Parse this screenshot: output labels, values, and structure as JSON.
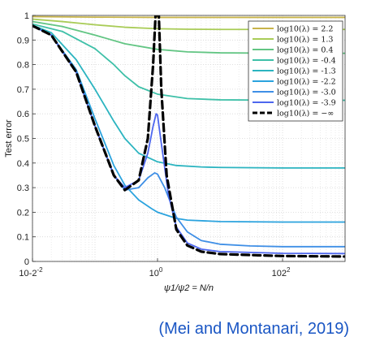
{
  "caption": "(Mei and Montanari, 2019)",
  "chart_data": {
    "type": "line",
    "title": "",
    "xlabel": "ψ1/ψ2 = N/n",
    "ylabel": "Test error",
    "xscale": "log",
    "xlim": [
      0.01,
      1000
    ],
    "ylim": [
      0,
      1
    ],
    "grid": true,
    "legend_position": "top-right",
    "x_ticks": [
      0.01,
      1,
      100
    ],
    "x_tick_labels": [
      "10-2",
      "10",
      "102"
    ],
    "y_ticks": [
      0,
      0.1,
      0.2,
      0.3,
      0.4,
      0.5,
      0.6,
      0.7,
      0.8,
      0.9,
      1
    ],
    "y_tick_labels": [
      "0",
      "0.1",
      "0.2",
      "0.3",
      "0.4",
      "0.5",
      "0.6",
      "0.7",
      "0.8",
      "0.9",
      "1"
    ],
    "x_tick_exponents": [
      "-2",
      "0",
      "2"
    ],
    "series": [
      {
        "name": "log10(λ) = 2.2",
        "color": "#c8b44a",
        "dashed": false,
        "points": [
          [
            0.01,
            0.995
          ],
          [
            0.1,
            0.993
          ],
          [
            1,
            0.992
          ],
          [
            10,
            0.992
          ],
          [
            100,
            0.992
          ],
          [
            1000,
            0.992
          ]
        ]
      },
      {
        "name": "log10(λ) = 1.3",
        "color": "#a9cc57",
        "dashed": false,
        "points": [
          [
            0.01,
            0.985
          ],
          [
            0.03,
            0.975
          ],
          [
            0.1,
            0.962
          ],
          [
            0.3,
            0.952
          ],
          [
            1,
            0.946
          ],
          [
            3,
            0.944
          ],
          [
            10,
            0.943
          ],
          [
            100,
            0.943
          ],
          [
            1000,
            0.943
          ]
        ]
      },
      {
        "name": "log10(λ) = 0.4",
        "color": "#62c583",
        "dashed": false,
        "points": [
          [
            0.01,
            0.975
          ],
          [
            0.03,
            0.955
          ],
          [
            0.1,
            0.92
          ],
          [
            0.3,
            0.885
          ],
          [
            1,
            0.862
          ],
          [
            3,
            0.852
          ],
          [
            10,
            0.848
          ],
          [
            100,
            0.846
          ],
          [
            1000,
            0.846
          ]
        ]
      },
      {
        "name": "log10(λ) = -0.4",
        "color": "#3ec0a8",
        "dashed": false,
        "points": [
          [
            0.01,
            0.965
          ],
          [
            0.03,
            0.935
          ],
          [
            0.1,
            0.865
          ],
          [
            0.2,
            0.8
          ],
          [
            0.3,
            0.755
          ],
          [
            0.5,
            0.71
          ],
          [
            1,
            0.68
          ],
          [
            3,
            0.662
          ],
          [
            10,
            0.657
          ],
          [
            100,
            0.655
          ],
          [
            1000,
            0.655
          ]
        ]
      },
      {
        "name": "log10(λ) = -1.3",
        "color": "#2bb4c0",
        "dashed": false,
        "points": [
          [
            0.01,
            0.96
          ],
          [
            0.02,
            0.93
          ],
          [
            0.05,
            0.82
          ],
          [
            0.1,
            0.7
          ],
          [
            0.2,
            0.57
          ],
          [
            0.3,
            0.5
          ],
          [
            0.5,
            0.44
          ],
          [
            1,
            0.405
          ],
          [
            2,
            0.39
          ],
          [
            5,
            0.384
          ],
          [
            10,
            0.382
          ],
          [
            100,
            0.38
          ],
          [
            1000,
            0.38
          ]
        ]
      },
      {
        "name": "log10(λ) = -2.2",
        "color": "#2ba3de",
        "dashed": false,
        "points": [
          [
            0.01,
            0.958
          ],
          [
            0.02,
            0.92
          ],
          [
            0.05,
            0.78
          ],
          [
            0.1,
            0.58
          ],
          [
            0.2,
            0.39
          ],
          [
            0.3,
            0.31
          ],
          [
            0.5,
            0.25
          ],
          [
            0.8,
            0.215
          ],
          [
            1,
            0.2
          ],
          [
            2,
            0.175
          ],
          [
            3,
            0.168
          ],
          [
            10,
            0.162
          ],
          [
            100,
            0.16
          ],
          [
            1000,
            0.16
          ]
        ]
      },
      {
        "name": "log10(λ) = -3.0",
        "color": "#3f8fe6",
        "dashed": false,
        "points": [
          [
            0.01,
            0.958
          ],
          [
            0.02,
            0.92
          ],
          [
            0.05,
            0.77
          ],
          [
            0.1,
            0.55
          ],
          [
            0.2,
            0.35
          ],
          [
            0.3,
            0.29
          ],
          [
            0.5,
            0.3
          ],
          [
            0.7,
            0.34
          ],
          [
            0.9,
            0.36
          ],
          [
            1,
            0.355
          ],
          [
            1.3,
            0.3
          ],
          [
            2,
            0.18
          ],
          [
            3,
            0.12
          ],
          [
            5,
            0.085
          ],
          [
            10,
            0.07
          ],
          [
            30,
            0.063
          ],
          [
            100,
            0.06
          ],
          [
            1000,
            0.06
          ]
        ]
      },
      {
        "name": "log10(λ) = -3.9",
        "color": "#4d66ee",
        "dashed": false,
        "points": [
          [
            0.01,
            0.958
          ],
          [
            0.02,
            0.92
          ],
          [
            0.05,
            0.77
          ],
          [
            0.1,
            0.55
          ],
          [
            0.2,
            0.35
          ],
          [
            0.3,
            0.3
          ],
          [
            0.5,
            0.33
          ],
          [
            0.7,
            0.44
          ],
          [
            0.85,
            0.55
          ],
          [
            0.95,
            0.6
          ],
          [
            1,
            0.595
          ],
          [
            1.15,
            0.48
          ],
          [
            1.5,
            0.27
          ],
          [
            2,
            0.14
          ],
          [
            3,
            0.075
          ],
          [
            5,
            0.05
          ],
          [
            10,
            0.04
          ],
          [
            100,
            0.033
          ],
          [
            1000,
            0.032
          ]
        ]
      },
      {
        "name": "log10(λ) = −∞",
        "color": "#000000",
        "dashed": true,
        "points": [
          [
            0.01,
            0.958
          ],
          [
            0.02,
            0.92
          ],
          [
            0.05,
            0.77
          ],
          [
            0.1,
            0.55
          ],
          [
            0.2,
            0.35
          ],
          [
            0.3,
            0.29
          ],
          [
            0.5,
            0.33
          ],
          [
            0.7,
            0.5
          ],
          [
            0.85,
            0.8
          ],
          [
            0.93,
            1.0
          ],
          [
            1.05,
            1.0
          ],
          [
            1.15,
            0.7
          ],
          [
            1.4,
            0.35
          ],
          [
            2,
            0.13
          ],
          [
            3,
            0.065
          ],
          [
            5,
            0.04
          ],
          [
            10,
            0.03
          ],
          [
            100,
            0.022
          ],
          [
            1000,
            0.02
          ]
        ]
      }
    ]
  }
}
